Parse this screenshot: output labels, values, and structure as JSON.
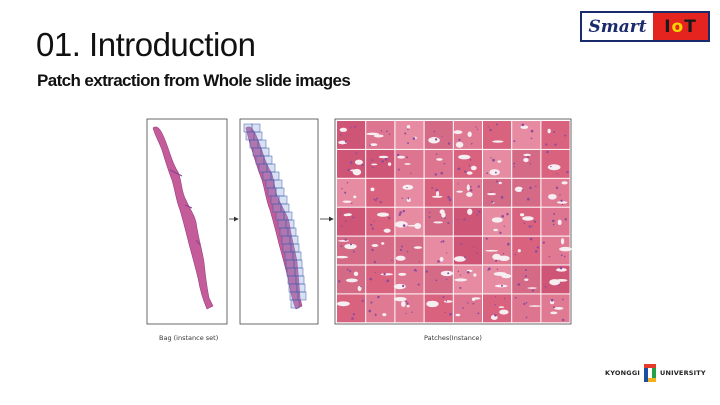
{
  "slide": {
    "title": "01. Introduction",
    "subtitle": "Patch extraction from Whole slide images"
  },
  "logo": {
    "word": "Smart",
    "iot_i": "I",
    "iot_o": "o",
    "iot_t": "T"
  },
  "figure": {
    "caption_bag": "Bag (instance set)",
    "caption_patches": "Patches(Instance)"
  },
  "university": {
    "left": "KYONGGI",
    "right": "UNIVERSITY"
  },
  "colors": {
    "tissue_pink": "#d9627f",
    "tissue_purple": "#b25aa6",
    "grid_blue": "#3d5aa8",
    "logo_navy": "#1a2b6b",
    "logo_red": "#e52420"
  }
}
